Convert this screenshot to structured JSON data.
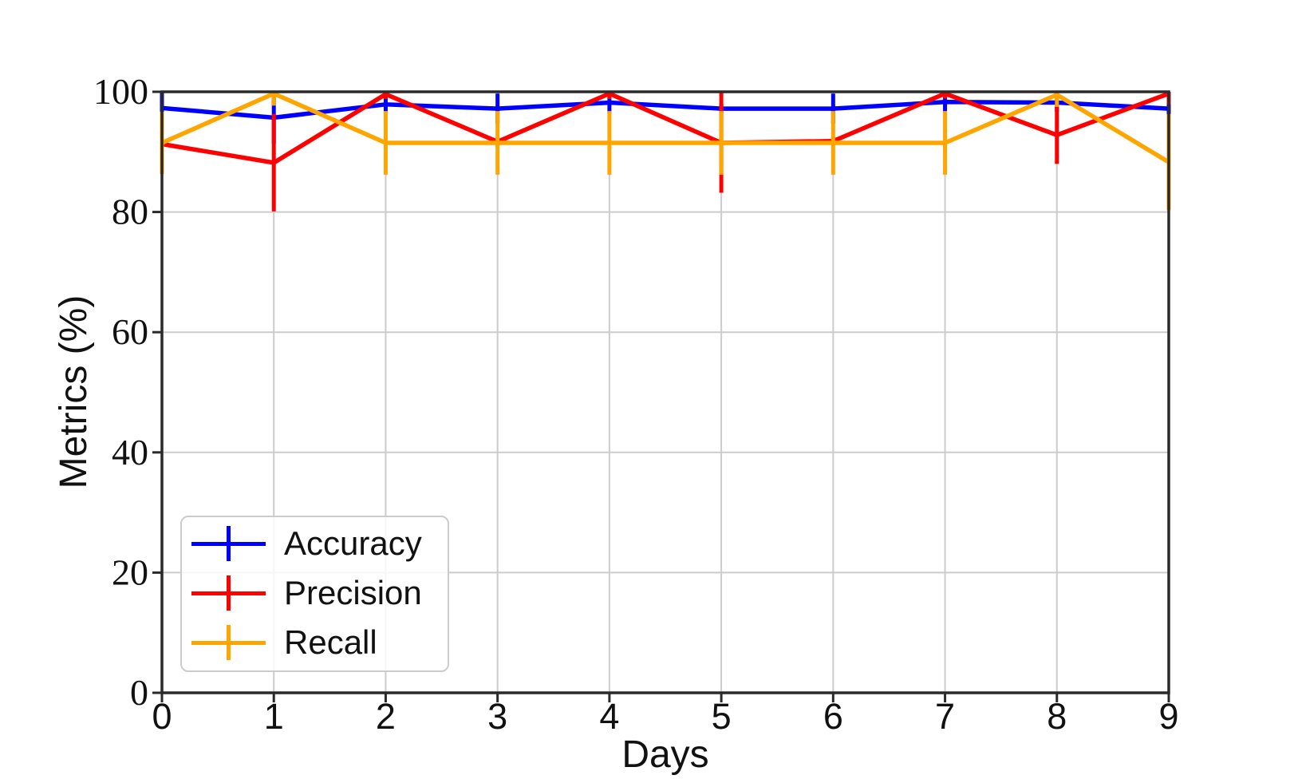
{
  "chart_data": {
    "type": "line",
    "title": "",
    "xlabel": "Days",
    "ylabel": "Metrics (%)",
    "x": [
      0,
      1,
      2,
      3,
      4,
      5,
      6,
      7,
      8,
      9
    ],
    "xlim": [
      0,
      9
    ],
    "ylim": [
      0,
      100
    ],
    "xticks": [
      0,
      1,
      2,
      3,
      4,
      5,
      6,
      7,
      8,
      9
    ],
    "yticks": [
      0,
      20,
      40,
      60,
      80,
      100
    ],
    "grid": true,
    "error_bars": true,
    "legend": {
      "position": "lower-left",
      "items": [
        "Accuracy",
        "Precision",
        "Recall"
      ]
    },
    "series": [
      {
        "name": "Accuracy",
        "color": "#0000ff",
        "values": [
          97.3,
          95.7,
          97.9,
          97.2,
          98.2,
          97.2,
          97.2,
          98.3,
          98.2,
          97.2
        ],
        "errors": [
          2.5,
          4.3,
          1.4,
          2.5,
          1.8,
          0.8,
          2.5,
          1.7,
          1.5,
          1.4
        ]
      },
      {
        "name": "Precision",
        "color": "#ff0000",
        "values": [
          91.3,
          88.2,
          99.6,
          91.7,
          99.7,
          91.5,
          91.8,
          99.7,
          92.8,
          99.7
        ],
        "errors": [
          0.6,
          8.1,
          0.8,
          0.7,
          0.9,
          8.3,
          0.7,
          0.8,
          4.8,
          1.8
        ]
      },
      {
        "name": "Recall",
        "color": "#ffa500",
        "values": [
          91.5,
          99.7,
          91.5,
          91.5,
          91.5,
          91.5,
          91.5,
          91.5,
          99.5,
          88.3
        ],
        "errors": [
          5.2,
          2.0,
          5.3,
          5.3,
          5.3,
          5.3,
          5.3,
          5.3,
          2.0,
          8.0
        ]
      }
    ],
    "axis_color": "#2a2a2a",
    "grid_color": "#cccccc"
  }
}
